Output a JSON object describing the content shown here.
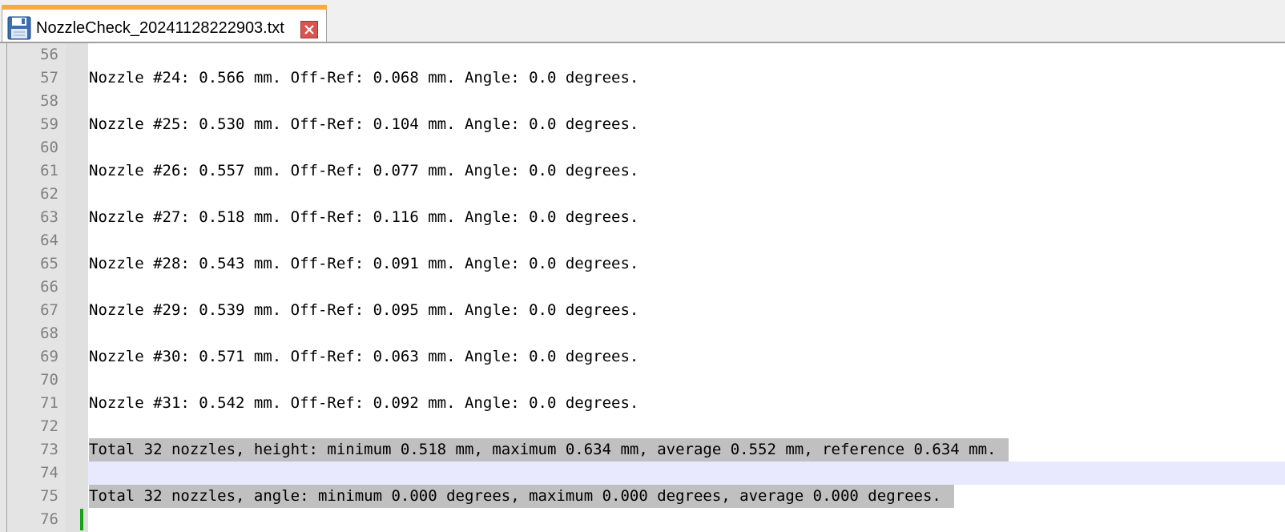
{
  "tab": {
    "title": "NozzleCheck_20241128222903.txt",
    "icon": "floppy-save-icon",
    "close_icon": "close-icon",
    "accent_color": "#faaa3c"
  },
  "editor": {
    "selection_color": "#c0c0c0",
    "caret_color": "#1aa01a",
    "lines": [
      {
        "number": "56",
        "text": ""
      },
      {
        "number": "57",
        "text": "Nozzle #24: 0.566 mm. Off-Ref: 0.068 mm. Angle: 0.0 degrees."
      },
      {
        "number": "58",
        "text": ""
      },
      {
        "number": "59",
        "text": "Nozzle #25: 0.530 mm. Off-Ref: 0.104 mm. Angle: 0.0 degrees."
      },
      {
        "number": "60",
        "text": ""
      },
      {
        "number": "61",
        "text": "Nozzle #26: 0.557 mm. Off-Ref: 0.077 mm. Angle: 0.0 degrees."
      },
      {
        "number": "62",
        "text": ""
      },
      {
        "number": "63",
        "text": "Nozzle #27: 0.518 mm. Off-Ref: 0.116 mm. Angle: 0.0 degrees."
      },
      {
        "number": "64",
        "text": ""
      },
      {
        "number": "65",
        "text": "Nozzle #28: 0.543 mm. Off-Ref: 0.091 mm. Angle: 0.0 degrees."
      },
      {
        "number": "66",
        "text": ""
      },
      {
        "number": "67",
        "text": "Nozzle #29: 0.539 mm. Off-Ref: 0.095 mm. Angle: 0.0 degrees."
      },
      {
        "number": "68",
        "text": ""
      },
      {
        "number": "69",
        "text": "Nozzle #30: 0.571 mm. Off-Ref: 0.063 mm. Angle: 0.0 degrees."
      },
      {
        "number": "70",
        "text": ""
      },
      {
        "number": "71",
        "text": "Nozzle #31: 0.542 mm. Off-Ref: 0.092 mm. Angle: 0.0 degrees."
      },
      {
        "number": "72",
        "text": ""
      },
      {
        "number": "73",
        "text": "Total 32 nozzles, height: minimum 0.518 mm, maximum 0.634 mm, average 0.552 mm, reference 0.634 mm."
      },
      {
        "number": "74",
        "text": ""
      },
      {
        "number": "75",
        "text": "Total 32 nozzles, angle: minimum 0.000 degrees, maximum 0.000 degrees, average 0.000 degrees."
      },
      {
        "number": "76",
        "text": ""
      }
    ]
  }
}
